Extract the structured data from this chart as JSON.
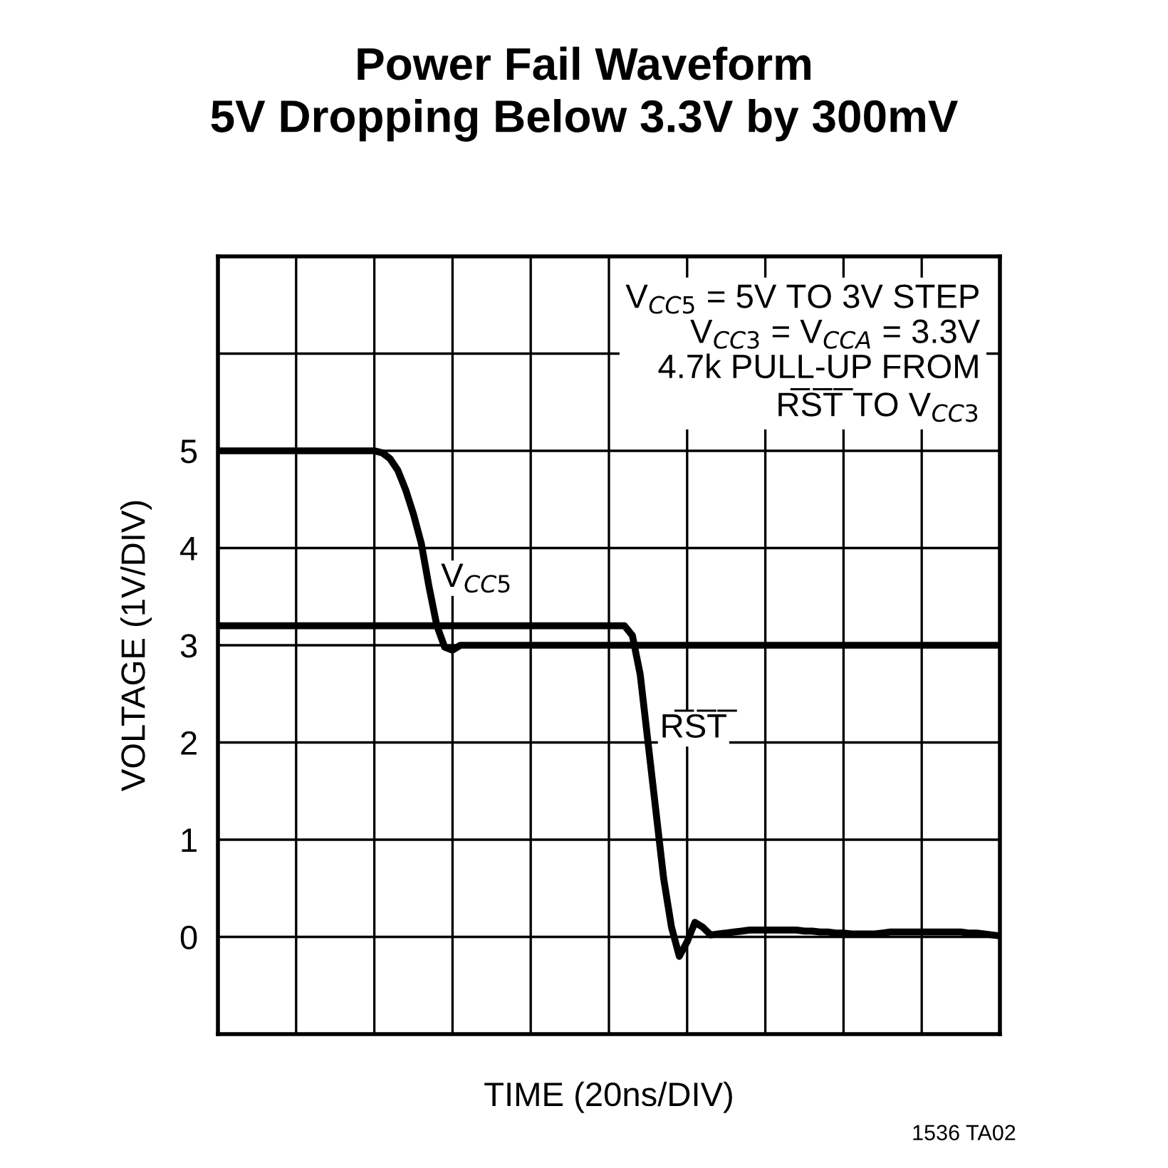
{
  "chart_data": {
    "type": "line",
    "title": "Power Fail Waveform\n5V Dropping Below 3.3V by 300mV",
    "xlabel": "TIME (20ns/DIV)",
    "ylabel": "VOLTAGE (1V/DIV)",
    "categories": [
      null,
      null,
      null,
      null,
      null,
      null,
      null,
      null,
      null,
      null,
      null,
      null,
      null,
      null,
      null,
      null,
      null,
      null,
      null,
      null,
      null,
      null,
      null,
      null,
      null,
      null,
      null,
      null,
      null,
      null,
      null,
      null,
      null,
      null,
      null,
      null,
      null,
      null,
      null,
      null,
      null,
      null,
      null,
      null,
      null,
      null,
      null,
      null,
      null,
      null,
      null,
      null,
      null,
      null,
      null,
      null,
      null,
      null,
      null,
      null,
      null,
      null,
      null,
      null,
      null,
      null,
      null,
      null,
      null,
      null,
      null,
      null,
      null,
      null,
      null,
      null,
      null,
      null,
      null,
      null,
      null,
      null,
      null,
      null,
      null,
      null,
      null,
      null,
      null,
      null,
      null,
      null,
      null,
      null,
      null,
      null,
      null,
      null,
      null,
      null,
      null
    ],
    "series": [
      {
        "name": "V$_{CC5}$",
        "color": "#000000",
        "values": [
          5.0,
          5.0,
          5.0,
          5.0,
          5.0,
          5.0,
          5.0,
          5.0,
          5.0,
          5.0,
          5.0,
          5.0,
          5.0,
          5.0,
          5.0,
          5.0,
          5.0,
          5.0,
          5.0,
          5.0,
          5.0,
          4.98,
          4.92,
          4.8,
          4.6,
          4.35,
          4.05,
          3.6,
          3.2,
          2.98,
          2.95,
          3.0,
          3.0,
          3.0,
          3.0,
          3.0,
          3.0,
          3.0,
          3.0,
          3.0,
          3.0,
          3.0,
          3.0,
          3.0,
          3.0,
          3.0,
          3.0,
          3.0,
          3.0,
          3.0,
          3.0,
          3.0,
          3.0,
          3.0,
          3.0,
          3.0,
          3.0,
          3.0,
          3.0,
          3.0,
          3.0,
          3.0,
          3.0,
          3.0,
          3.0,
          3.0,
          3.0,
          3.0,
          3.0,
          3.0,
          3.0,
          3.0,
          3.0,
          3.0,
          3.0,
          3.0,
          3.0,
          3.0,
          3.0,
          3.0,
          3.0,
          3.0,
          3.0,
          3.0,
          3.0,
          3.0,
          3.0,
          3.0,
          3.0,
          3.0,
          3.0,
          3.0,
          3.0,
          3.0,
          3.0,
          3.0,
          3.0,
          3.0,
          3.0,
          3.0,
          3.0
        ]
      },
      {
        "name": "R̅S̅T̅",
        "color": "#000000",
        "values": [
          3.2,
          3.2,
          3.2,
          3.2,
          3.2,
          3.2,
          3.2,
          3.2,
          3.2,
          3.2,
          3.2,
          3.2,
          3.2,
          3.2,
          3.2,
          3.2,
          3.2,
          3.2,
          3.2,
          3.2,
          3.2,
          3.2,
          3.2,
          3.2,
          3.2,
          3.2,
          3.2,
          3.2,
          3.2,
          3.2,
          3.2,
          3.2,
          3.2,
          3.2,
          3.2,
          3.2,
          3.2,
          3.2,
          3.2,
          3.2,
          3.2,
          3.2,
          3.2,
          3.2,
          3.2,
          3.2,
          3.2,
          3.2,
          3.2,
          3.2,
          3.2,
          3.2,
          3.2,
          3.1,
          2.7,
          2.0,
          1.3,
          0.6,
          0.1,
          -0.2,
          -0.05,
          0.15,
          0.1,
          0.02,
          0.03,
          0.04,
          0.05,
          0.06,
          0.07,
          0.07,
          0.07,
          0.07,
          0.07,
          0.07,
          0.07,
          0.06,
          0.06,
          0.05,
          0.05,
          0.04,
          0.04,
          0.03,
          0.03,
          0.03,
          0.03,
          0.04,
          0.05,
          0.05,
          0.05,
          0.05,
          0.05,
          0.05,
          0.05,
          0.05,
          0.05,
          0.05,
          0.04,
          0.04,
          0.03,
          0.02,
          0.01
        ]
      }
    ],
    "ylim": [
      -1,
      7
    ],
    "yticks": [
      {
        "value": -1,
        "label": null
      },
      0,
      1,
      2,
      3,
      4,
      5,
      {
        "value": 6,
        "label": null
      },
      {
        "value": 7,
        "label": null
      }
    ],
    "tick_labels": "y",
    "grid": true,
    "legend": false,
    "marker": "none",
    "line_style": "solid",
    "annotations": [
      "V$_{CC5}$ = 5V TO 3V STEP\nV$_{CC3}$ = V$_{CCA}$ = 3.3V\n4.7k PULL-UP FROM\nR̅S̅T̅ TO V$_{CC3}$",
      "1536 TA02"
    ]
  }
}
